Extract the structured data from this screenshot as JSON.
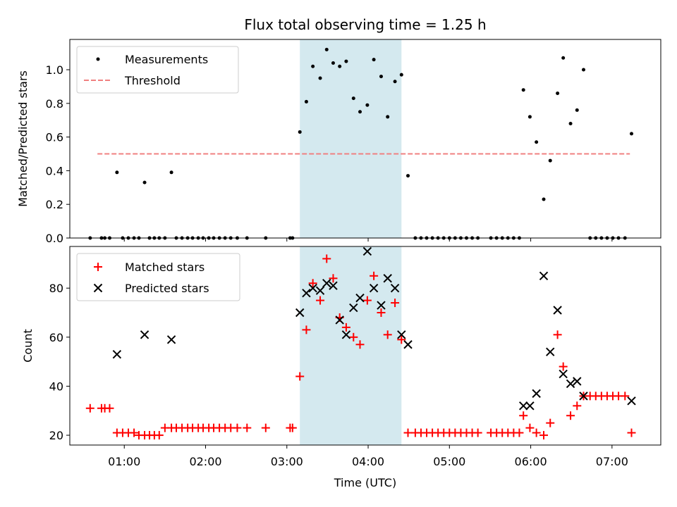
{
  "chart_data": [
    {
      "type": "scatter",
      "title": "Flux total observing time = 1.25 h",
      "xlabel": "",
      "ylabel": "Matched/Predicted stars",
      "xlim": [
        0.33,
        7.6
      ],
      "ylim": [
        0,
        1.18
      ],
      "yticks": [
        0.0,
        0.2,
        0.4,
        0.6,
        0.8,
        1.0
      ],
      "ytick_labels": [
        "0.0",
        "0.2",
        "0.4",
        "0.6",
        "0.8",
        "1.0"
      ],
      "shaded_span": [
        3.16,
        4.41
      ],
      "shaded_color": "#d4e9ef",
      "legend": [
        {
          "label": "Measurements",
          "marker": "dot",
          "color": "#000000"
        },
        {
          "label": "Threshold",
          "marker": "dashed-line",
          "color": "#f08080"
        }
      ],
      "threshold": {
        "value": 0.5,
        "x_start": 0.67,
        "x_end": 7.22
      },
      "series": [
        {
          "name": "Measurements",
          "x": [
            0.58,
            0.72,
            0.76,
            0.82,
            0.91,
            0.98,
            1.05,
            1.12,
            1.18,
            1.25,
            1.31,
            1.37,
            1.43,
            1.5,
            1.58,
            1.64,
            1.71,
            1.78,
            1.84,
            1.91,
            1.97,
            2.04,
            2.1,
            2.17,
            2.24,
            2.31,
            2.39,
            2.51,
            2.74,
            3.04,
            3.07,
            3.16,
            3.24,
            3.32,
            3.41,
            3.49,
            3.57,
            3.65,
            3.73,
            3.82,
            3.9,
            3.99,
            4.07,
            4.16,
            4.24,
            4.33,
            4.41,
            4.49,
            4.58,
            4.65,
            4.72,
            4.79,
            4.86,
            4.93,
            5.0,
            5.07,
            5.14,
            5.21,
            5.28,
            5.35,
            5.51,
            5.58,
            5.65,
            5.72,
            5.79,
            5.86,
            5.91,
            5.99,
            6.07,
            6.16,
            6.24,
            6.33,
            6.4,
            6.49,
            6.57,
            6.65,
            6.73,
            6.8,
            6.87,
            6.94,
            7.01,
            7.08,
            7.16,
            7.24
          ],
          "y": [
            0,
            0,
            0,
            0,
            0.39,
            0,
            0,
            0,
            0,
            0.33,
            0,
            0,
            0,
            0,
            0.39,
            0,
            0,
            0,
            0,
            0,
            0,
            0,
            0,
            0,
            0,
            0,
            0,
            0,
            0,
            0,
            0,
            0.63,
            0.81,
            1.02,
            0.95,
            1.12,
            1.04,
            1.02,
            1.05,
            0.83,
            0.75,
            0.79,
            1.06,
            0.96,
            0.72,
            0.93,
            0.97,
            0.37,
            0,
            0,
            0,
            0,
            0,
            0,
            0,
            0,
            0,
            0,
            0,
            0,
            0,
            0,
            0,
            0,
            0,
            0,
            0.88,
            0.72,
            0.57,
            0.23,
            0.46,
            0.86,
            1.07,
            0.68,
            0.76,
            1.0,
            0,
            0,
            0,
            0,
            0,
            0,
            0,
            0.62
          ]
        }
      ]
    },
    {
      "type": "scatter",
      "title": "",
      "xlabel": "Time (UTC)",
      "ylabel": "Count",
      "xlim": [
        0.33,
        7.6
      ],
      "ylim": [
        16,
        97
      ],
      "yticks": [
        20,
        40,
        60,
        80
      ],
      "ytick_labels": [
        "20",
        "40",
        "60",
        "80"
      ],
      "xticks": [
        1,
        2,
        3,
        4,
        5,
        6,
        7
      ],
      "xtick_labels": [
        "01:00",
        "02:00",
        "03:00",
        "04:00",
        "05:00",
        "06:00",
        "07:00"
      ],
      "shaded_span": [
        3.16,
        4.41
      ],
      "shaded_color": "#d4e9ef",
      "legend": [
        {
          "label": "Matched stars",
          "marker": "plus",
          "color": "#ff0000"
        },
        {
          "label": "Predicted stars",
          "marker": "x",
          "color": "#000000"
        }
      ],
      "series": [
        {
          "name": "Matched stars",
          "x": [
            0.58,
            0.72,
            0.76,
            0.82,
            0.91,
            0.98,
            1.05,
            1.12,
            1.18,
            1.25,
            1.31,
            1.37,
            1.43,
            1.5,
            1.58,
            1.64,
            1.71,
            1.78,
            1.84,
            1.91,
            1.97,
            2.04,
            2.1,
            2.17,
            2.24,
            2.31,
            2.39,
            2.51,
            2.74,
            3.04,
            3.07,
            3.16,
            3.24,
            3.32,
            3.41,
            3.49,
            3.57,
            3.65,
            3.73,
            3.82,
            3.9,
            3.99,
            4.07,
            4.16,
            4.24,
            4.33,
            4.41,
            4.49,
            4.58,
            4.65,
            4.72,
            4.79,
            4.86,
            4.93,
            5.0,
            5.07,
            5.14,
            5.21,
            5.28,
            5.35,
            5.51,
            5.58,
            5.65,
            5.72,
            5.79,
            5.86,
            5.91,
            5.99,
            6.07,
            6.16,
            6.24,
            6.33,
            6.4,
            6.49,
            6.57,
            6.65,
            6.73,
            6.8,
            6.87,
            6.94,
            7.01,
            7.08,
            7.16,
            7.24
          ],
          "y": [
            31,
            31,
            31,
            31,
            21,
            21,
            21,
            21,
            20,
            20,
            20,
            20,
            20,
            23,
            23,
            23,
            23,
            23,
            23,
            23,
            23,
            23,
            23,
            23,
            23,
            23,
            23,
            23,
            23,
            23,
            23,
            44,
            63,
            82,
            75,
            92,
            84,
            68,
            64,
            60,
            57,
            75,
            85,
            70,
            61,
            74,
            59,
            21,
            21,
            21,
            21,
            21,
            21,
            21,
            21,
            21,
            21,
            21,
            21,
            21,
            21,
            21,
            21,
            21,
            21,
            21,
            28,
            23,
            21,
            20,
            25,
            61,
            48,
            28,
            32,
            36,
            36,
            36,
            36,
            36,
            36,
            36,
            36,
            21
          ]
        },
        {
          "name": "Predicted stars",
          "x": [
            0.91,
            1.25,
            1.58,
            3.16,
            3.24,
            3.32,
            3.41,
            3.49,
            3.57,
            3.65,
            3.73,
            3.82,
            3.9,
            3.99,
            4.07,
            4.16,
            4.24,
            4.33,
            4.41,
            4.49,
            5.91,
            5.99,
            6.07,
            6.16,
            6.24,
            6.33,
            6.4,
            6.49,
            6.57,
            6.65,
            7.24
          ],
          "y": [
            53,
            61,
            59,
            70,
            78,
            80,
            79,
            82,
            81,
            67,
            61,
            72,
            76,
            95,
            80,
            73,
            84,
            80,
            61,
            57,
            32,
            32,
            37,
            85,
            54,
            71,
            45,
            41,
            42,
            36,
            34
          ]
        }
      ]
    }
  ]
}
